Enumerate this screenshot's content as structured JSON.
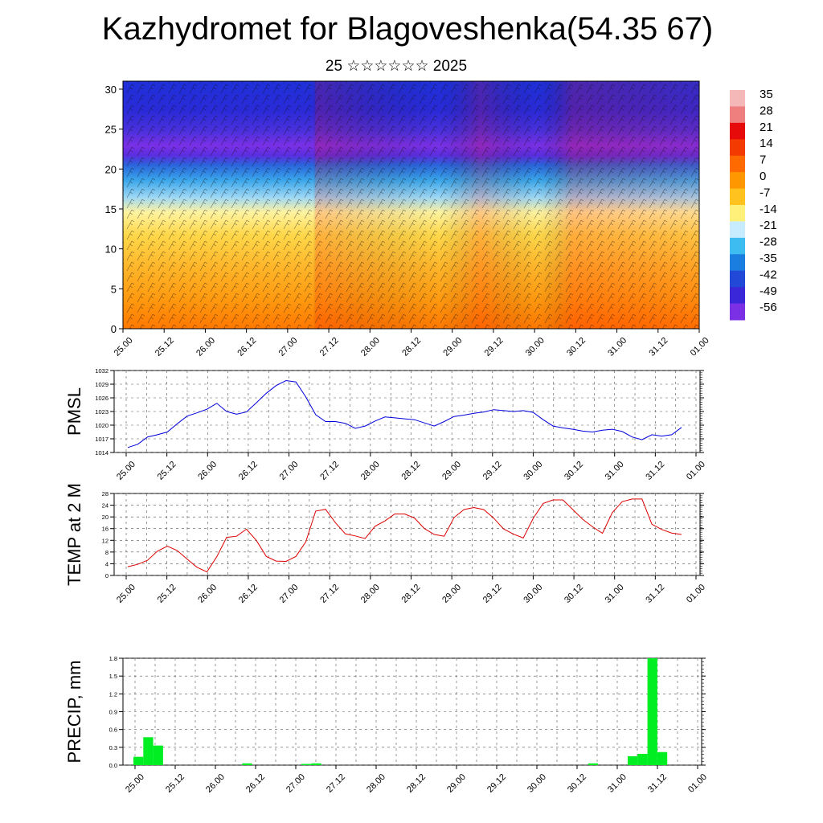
{
  "title": "Kazhydromet for Blagoveshenka(54.35 67)",
  "subtitle": "25 ☆☆☆☆☆☆ 2025",
  "chart_data": [
    {
      "type": "heatmap",
      "name": "cross-section",
      "x_ticks": [
        "25.00",
        "25.12",
        "26.00",
        "26.12",
        "27.00",
        "27.12",
        "28.00",
        "28.12",
        "29.00",
        "29.12",
        "30.00",
        "30.12",
        "31.00",
        "31.12",
        "01.00"
      ],
      "y_ticks": [
        0,
        5,
        10,
        15,
        20,
        25,
        30
      ],
      "ylim": [
        0,
        31
      ],
      "colorbar_labels": [
        "35",
        "28",
        "21",
        "14",
        "7",
        "0",
        "-7",
        "-14",
        "-21",
        "-28",
        "-35",
        "-42",
        "-49",
        "-56"
      ],
      "colorbar_colors": [
        "#f4b8b8",
        "#ef7f7f",
        "#e60a0a",
        "#f33a00",
        "#ff6a00",
        "#ff9700",
        "#ffc21e",
        "#fff07a",
        "#c8ecff",
        "#3cbcf0",
        "#1a7de0",
        "#2148d6",
        "#3a28d8",
        "#7c30e6"
      ]
    },
    {
      "type": "line",
      "ylabel": "PMSL",
      "yticks": [
        1014,
        1017,
        1020,
        1023,
        1026,
        1029,
        1032
      ],
      "ylim": [
        1014,
        1032
      ],
      "color": "#0000dd",
      "x_ticks": [
        "25.00",
        "25.12",
        "26.00",
        "26.12",
        "27.00",
        "27.12",
        "28.00",
        "28.12",
        "29.00",
        "29.12",
        "30.00",
        "30.12",
        "31.00",
        "31.12",
        "01.00"
      ],
      "values": [
        1015.1,
        1015.8,
        1017.4,
        1017.9,
        1018.5,
        1020.3,
        1022.0,
        1022.7,
        1023.5,
        1024.8,
        1023.0,
        1022.4,
        1022.9,
        1024.9,
        1027.0,
        1028.7,
        1029.8,
        1029.5,
        1026.2,
        1022.3,
        1020.8,
        1020.8,
        1020.4,
        1019.3,
        1019.8,
        1020.9,
        1021.8,
        1021.6,
        1021.4,
        1021.2,
        1020.5,
        1019.8,
        1020.8,
        1021.9,
        1022.2,
        1022.6,
        1022.9,
        1023.4,
        1023.2,
        1023.0,
        1023.2,
        1022.8,
        1021.2,
        1019.8,
        1019.4,
        1019.1,
        1018.7,
        1018.5,
        1018.9,
        1019.1,
        1018.6,
        1017.4,
        1016.8,
        1017.9,
        1017.6,
        1017.9,
        1019.5
      ]
    },
    {
      "type": "line",
      "ylabel": "TEMP at 2 M",
      "yticks": [
        0,
        4,
        8,
        12,
        16,
        20,
        24,
        28
      ],
      "ylim": [
        0,
        28
      ],
      "color": "#dd0000",
      "x_ticks": [
        "25.00",
        "25.12",
        "26.00",
        "26.12",
        "27.00",
        "27.12",
        "28.00",
        "28.12",
        "29.00",
        "29.12",
        "30.00",
        "30.12",
        "31.00",
        "31.12",
        "01.00"
      ],
      "values": [
        3.0,
        3.8,
        5.2,
        8.3,
        10.0,
        8.5,
        5.6,
        2.8,
        1.2,
        6.4,
        13.0,
        13.4,
        15.8,
        12.0,
        6.5,
        4.9,
        4.8,
        6.5,
        11.5,
        22.0,
        22.6,
        18.0,
        14.2,
        13.5,
        12.6,
        16.8,
        18.6,
        21.0,
        21.0,
        19.6,
        16.0,
        14.0,
        13.4,
        19.8,
        22.5,
        23.2,
        22.5,
        19.6,
        15.9,
        14.1,
        12.8,
        19.5,
        24.6,
        25.8,
        25.8,
        22.5,
        19.2,
        16.6,
        14.4,
        21.5,
        25.2,
        26.1,
        26.1,
        17.5,
        15.7,
        14.5,
        14.0
      ]
    },
    {
      "type": "bar",
      "ylabel": "PRECIP, mm",
      "yticks": [
        "0.0",
        "0.3",
        "0.6",
        "0.9",
        "1.2",
        "1.5",
        "1.8"
      ],
      "ylim": [
        0,
        1.8
      ],
      "color": "#00ee22",
      "x_ticks": [
        "25.00",
        "25.12",
        "26.00",
        "26.12",
        "27.00",
        "27.12",
        "28.00",
        "28.12",
        "29.00",
        "29.12",
        "30.00",
        "30.12",
        "31.00",
        "31.12",
        "01.00"
      ],
      "values": [
        0.14,
        0.47,
        0.33,
        0,
        0,
        0,
        0,
        0,
        0,
        0,
        0,
        0.03,
        0,
        0,
        0,
        0,
        0,
        0.02,
        0.03,
        0,
        0,
        0,
        0,
        0,
        0,
        0,
        0,
        0,
        0,
        0,
        0,
        0,
        0,
        0,
        0,
        0,
        0,
        0,
        0,
        0,
        0,
        0,
        0,
        0,
        0,
        0,
        0.03,
        0,
        0,
        0,
        0.15,
        0.19,
        1.8,
        0.22
      ]
    }
  ]
}
